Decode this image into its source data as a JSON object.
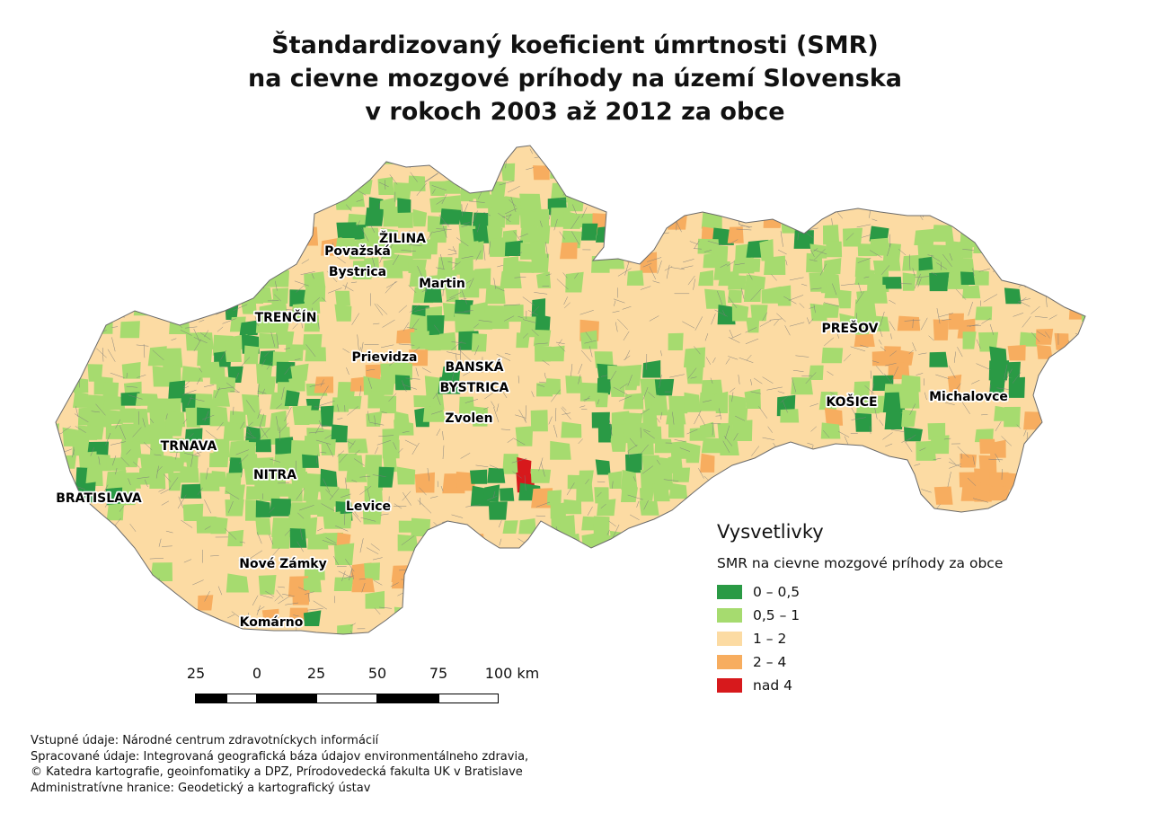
{
  "title": {
    "line1": "Štandardizovaný koeficient úmrtnosti (SMR)",
    "line2": "na cievne mozgové príhody na území Slovenska",
    "line3": "v rokoch 2003 až 2012 za obce"
  },
  "map": {
    "colors": {
      "class_0_05": "#2a9a45",
      "class_05_1": "#a6db6f",
      "class_1_2": "#fcdba3",
      "class_2_4": "#f7ad5f",
      "class_over4": "#d7191c",
      "border": "#7a7a7a"
    },
    "cities": [
      {
        "name": "ŽILINA"
      },
      {
        "name": "Považská"
      },
      {
        "name": "Bystrica"
      },
      {
        "name": "Martin"
      },
      {
        "name": "TRENČÍN"
      },
      {
        "name": "Prievidza"
      },
      {
        "name": "BANSKÁ"
      },
      {
        "name": "BYSTRICA"
      },
      {
        "name": "Zvolen"
      },
      {
        "name": "TRNAVA"
      },
      {
        "name": "NITRA"
      },
      {
        "name": "BRATISLAVA"
      },
      {
        "name": "Levice"
      },
      {
        "name": "Nové Zámky"
      },
      {
        "name": "Komárno"
      },
      {
        "name": "PREŠOV"
      },
      {
        "name": "KOŠICE"
      },
      {
        "name": "Michalovce"
      }
    ]
  },
  "legend": {
    "heading": "Vysvetlivky",
    "subtitle": "SMR na cievne mozgové príhody za obce",
    "items": [
      {
        "label": "0 – 0,5",
        "color": "#2a9a45"
      },
      {
        "label": "0,5 – 1",
        "color": "#a6db6f"
      },
      {
        "label": "1 – 2",
        "color": "#fcdba3"
      },
      {
        "label": "2 – 4",
        "color": "#f7ad5f"
      },
      {
        "label": "nad 4",
        "color": "#d7191c"
      }
    ]
  },
  "scalebar": {
    "labels": [
      "25",
      "0",
      "25",
      "50",
      "75",
      "100 km"
    ]
  },
  "source": {
    "line1": "Vstupné údaje: Národné centrum zdravotníckych informácií",
    "line2": "Spracované údaje: Integrovaná geografická báza údajov environmentálneho zdravia,",
    "line3": "© Katedra kartografie, geoinfomatiky a DPZ, Prírodovedecká fakulta UK v Bratislave",
    "line4": "Administratívne hranice: Geodetický a kartografický ústav"
  }
}
